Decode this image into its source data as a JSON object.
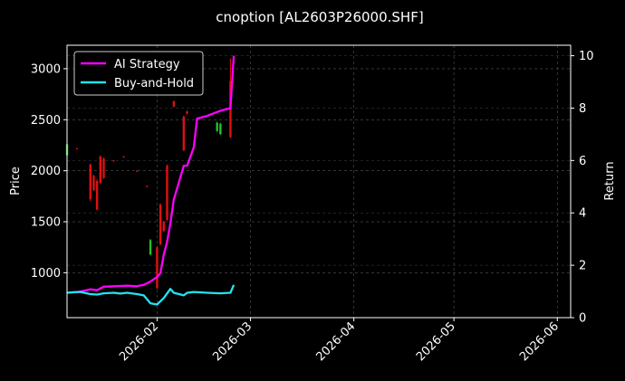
{
  "chart_data": {
    "type": "line",
    "title": "cnoption [AL2603P26000.SHF]",
    "ylabel": "Price",
    "y2label": "Return",
    "grid": true,
    "legend_position": "top-left",
    "x_ticks": [
      "2026-02",
      "2026-03",
      "2026-04",
      "2026-05",
      "2026-06"
    ],
    "x_tick_dates": [
      "2026-02-01",
      "2026-03-01",
      "2026-04-01",
      "2026-05-01",
      "2026-06-01"
    ],
    "xlim": [
      "2026-01-05",
      "2026-06-05"
    ],
    "y_ticks": [
      1000,
      1500,
      2000,
      2500,
      3000
    ],
    "ylim": [
      560,
      3230
    ],
    "y2_ticks": [
      0,
      2,
      4,
      6,
      8,
      10
    ],
    "y2lim": [
      0,
      10.4
    ],
    "colors": {
      "up": "#22c22a",
      "down": "#e01010",
      "strategy": "#ff00ff",
      "buy_hold": "#22e3f0"
    },
    "candles": [
      {
        "date": "2026-01-05",
        "open": 2150,
        "close": 2260,
        "high": 2270,
        "low": 2140
      },
      {
        "date": "2026-01-08",
        "open": 2220,
        "close": 2215,
        "high": 2225,
        "low": 2210
      },
      {
        "date": "2026-01-12",
        "open": 2060,
        "close": 1720,
        "high": 2070,
        "low": 1700
      },
      {
        "date": "2026-01-13",
        "open": 1950,
        "close": 1810,
        "high": 1960,
        "low": 1800
      },
      {
        "date": "2026-01-14",
        "open": 1900,
        "close": 1620,
        "high": 1920,
        "low": 1610
      },
      {
        "date": "2026-01-15",
        "open": 2140,
        "close": 1880,
        "high": 2150,
        "low": 1870
      },
      {
        "date": "2026-01-16",
        "open": 2120,
        "close": 1930,
        "high": 2130,
        "low": 1920
      },
      {
        "date": "2026-01-19",
        "open": 2100,
        "close": 2095,
        "high": 2105,
        "low": 2090
      },
      {
        "date": "2026-01-22",
        "open": 2140,
        "close": 2135,
        "high": 2145,
        "low": 2130
      },
      {
        "date": "2026-01-26",
        "open": 2000,
        "close": 1995,
        "high": 2005,
        "low": 1990
      },
      {
        "date": "2026-01-29",
        "open": 1850,
        "close": 1845,
        "high": 1855,
        "low": 1840
      },
      {
        "date": "2026-01-30",
        "open": 1180,
        "close": 1320,
        "high": 1330,
        "low": 1170
      },
      {
        "date": "2026-02-01",
        "open": 1250,
        "close": 850,
        "high": 1260,
        "low": 840
      },
      {
        "date": "2026-02-02",
        "open": 1670,
        "close": 1280,
        "high": 1680,
        "low": 1270
      },
      {
        "date": "2026-02-03",
        "open": 1500,
        "close": 1410,
        "high": 1510,
        "low": 1400
      },
      {
        "date": "2026-02-04",
        "open": 2050,
        "close": 1520,
        "high": 2060,
        "low": 1510
      },
      {
        "date": "2026-02-05",
        "open": 2800,
        "close": 2780,
        "high": 2810,
        "low": 2770
      },
      {
        "date": "2026-02-06",
        "open": 2680,
        "close": 2630,
        "high": 2690,
        "low": 2620
      },
      {
        "date": "2026-02-09",
        "open": 2530,
        "close": 2200,
        "high": 2540,
        "low": 2190
      },
      {
        "date": "2026-02-10",
        "open": 2580,
        "close": 2560,
        "high": 2590,
        "low": 2550
      },
      {
        "date": "2026-02-19",
        "open": 2390,
        "close": 2470,
        "high": 2480,
        "low": 2380
      },
      {
        "date": "2026-02-20",
        "open": 2360,
        "close": 2460,
        "high": 2470,
        "low": 2350
      },
      {
        "date": "2026-02-23",
        "open": 2880,
        "close": 2330,
        "high": 3100,
        "low": 2320
      }
    ],
    "series": [
      {
        "name": "AI Strategy",
        "axis": "right",
        "points": [
          [
            "2026-01-05",
            0.95
          ],
          [
            "2026-01-07",
            0.97
          ],
          [
            "2026-01-09",
            1.0
          ],
          [
            "2026-01-12",
            1.08
          ],
          [
            "2026-01-14",
            1.05
          ],
          [
            "2026-01-16",
            1.18
          ],
          [
            "2026-01-19",
            1.2
          ],
          [
            "2026-01-23",
            1.22
          ],
          [
            "2026-01-26",
            1.2
          ],
          [
            "2026-01-28",
            1.25
          ],
          [
            "2026-01-30",
            1.38
          ],
          [
            "2026-02-01",
            1.55
          ],
          [
            "2026-02-02",
            1.7
          ],
          [
            "2026-02-03",
            2.4
          ],
          [
            "2026-02-04",
            2.9
          ],
          [
            "2026-02-05",
            3.6
          ],
          [
            "2026-02-06",
            4.5
          ],
          [
            "2026-02-09",
            5.8
          ],
          [
            "2026-02-10",
            5.8
          ],
          [
            "2026-02-12",
            6.5
          ],
          [
            "2026-02-13",
            7.6
          ],
          [
            "2026-02-16",
            7.7
          ],
          [
            "2026-02-19",
            7.85
          ],
          [
            "2026-02-20",
            7.9
          ],
          [
            "2026-02-23",
            8.0
          ],
          [
            "2026-02-24",
            10.0
          ]
        ]
      },
      {
        "name": "Buy-and-Hold",
        "axis": "right",
        "points": [
          [
            "2026-01-05",
            0.95
          ],
          [
            "2026-01-07",
            0.97
          ],
          [
            "2026-01-09",
            0.98
          ],
          [
            "2026-01-12",
            0.9
          ],
          [
            "2026-01-14",
            0.88
          ],
          [
            "2026-01-16",
            0.93
          ],
          [
            "2026-01-19",
            0.95
          ],
          [
            "2026-01-21",
            0.92
          ],
          [
            "2026-01-23",
            0.95
          ],
          [
            "2026-01-26",
            0.9
          ],
          [
            "2026-01-28",
            0.85
          ],
          [
            "2026-01-30",
            0.55
          ],
          [
            "2026-02-01",
            0.5
          ],
          [
            "2026-02-03",
            0.75
          ],
          [
            "2026-02-05",
            1.1
          ],
          [
            "2026-02-06",
            0.95
          ],
          [
            "2026-02-09",
            0.85
          ],
          [
            "2026-02-10",
            0.95
          ],
          [
            "2026-02-12",
            0.98
          ],
          [
            "2026-02-16",
            0.95
          ],
          [
            "2026-02-20",
            0.93
          ],
          [
            "2026-02-23",
            0.95
          ],
          [
            "2026-02-24",
            1.25
          ]
        ]
      }
    ]
  }
}
